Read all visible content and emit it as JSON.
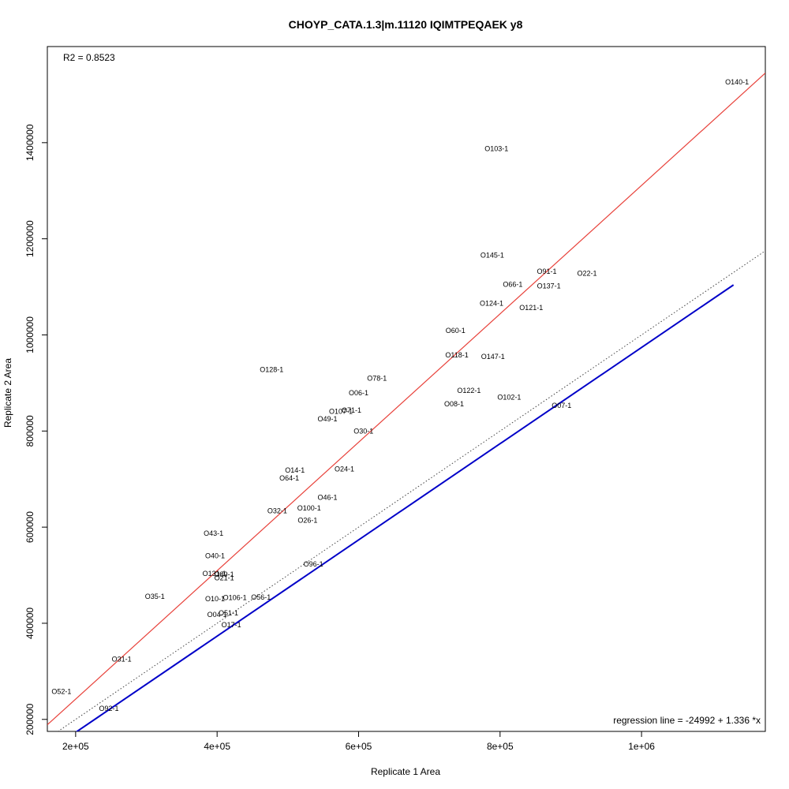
{
  "chart_data": {
    "type": "scatter",
    "title": "CHOYP_CATA.1.3|m.11120 IQIMTPEQAEK y8",
    "xlabel": "Replicate 1 Area",
    "ylabel": "Replicate 2 Area",
    "r2_text": "R2 = 0.8523",
    "regression_text": "regression line = -24992 + 1.336 *x",
    "xlim": [
      160000,
      1175000
    ],
    "ylim": [
      175000,
      1600000
    ],
    "x_ticks": [
      {
        "value": 200000,
        "label": "2e+05"
      },
      {
        "value": 400000,
        "label": "4e+05"
      },
      {
        "value": 600000,
        "label": "6e+05"
      },
      {
        "value": 800000,
        "label": "8e+05"
      },
      {
        "value": 1000000,
        "label": "1e+06"
      }
    ],
    "y_ticks": [
      {
        "value": 200000,
        "label": "200000"
      },
      {
        "value": 400000,
        "label": "400000"
      },
      {
        "value": 600000,
        "label": "600000"
      },
      {
        "value": 800000,
        "label": "800000"
      },
      {
        "value": 1000000,
        "label": "1000000"
      },
      {
        "value": 1200000,
        "label": "1200000"
      },
      {
        "value": 1400000,
        "label": "1400000"
      }
    ],
    "lines": {
      "regression": {
        "intercept": -24992,
        "slope": 1.336,
        "color": "#e8413a"
      },
      "identity": {
        "intercept": 0,
        "slope": 1,
        "color": "#444444",
        "style": "dotted"
      },
      "reference": {
        "x": [
          200000,
          1130000
        ],
        "y": [
          173000,
          1104000
        ],
        "color": "#0000c8"
      }
    },
    "points": [
      {
        "label": "O140-1",
        "x": 1135000,
        "y": 1526000
      },
      {
        "label": "O103-1",
        "x": 795000,
        "y": 1387000
      },
      {
        "label": "O145-1",
        "x": 789000,
        "y": 1166000
      },
      {
        "label": "O91-1",
        "x": 866000,
        "y": 1132000
      },
      {
        "label": "O22-1",
        "x": 923000,
        "y": 1128000
      },
      {
        "label": "O66-1",
        "x": 818000,
        "y": 1105000
      },
      {
        "label": "O137-1",
        "x": 869000,
        "y": 1102000
      },
      {
        "label": "O124-1",
        "x": 788000,
        "y": 1066000
      },
      {
        "label": "O121-1",
        "x": 844000,
        "y": 1057000
      },
      {
        "label": "O60-1",
        "x": 737000,
        "y": 1009000
      },
      {
        "label": "O118-1",
        "x": 739000,
        "y": 958000
      },
      {
        "label": "O147-1",
        "x": 790000,
        "y": 955000
      },
      {
        "label": "O128-1",
        "x": 477000,
        "y": 928000
      },
      {
        "label": "O78-1",
        "x": 626000,
        "y": 910000
      },
      {
        "label": "O122-1",
        "x": 756000,
        "y": 884000
      },
      {
        "label": "O06-1",
        "x": 600000,
        "y": 879000
      },
      {
        "label": "O102-1",
        "x": 813000,
        "y": 870000
      },
      {
        "label": "O08-1",
        "x": 735000,
        "y": 856000
      },
      {
        "label": "O07-1",
        "x": 887000,
        "y": 853000
      },
      {
        "label": "O71-1",
        "x": 590000,
        "y": 843000
      },
      {
        "label": "O107-1",
        "x": 575000,
        "y": 841000
      },
      {
        "label": "O49-1",
        "x": 556000,
        "y": 825000
      },
      {
        "label": "O30-1",
        "x": 607000,
        "y": 800000
      },
      {
        "label": "O24-1",
        "x": 580000,
        "y": 721000
      },
      {
        "label": "O14-1",
        "x": 510000,
        "y": 718000
      },
      {
        "label": "O64-1",
        "x": 502000,
        "y": 702000
      },
      {
        "label": "O46-1",
        "x": 556000,
        "y": 662000
      },
      {
        "label": "O100-1",
        "x": 530000,
        "y": 640000
      },
      {
        "label": "O32-1",
        "x": 485000,
        "y": 634000
      },
      {
        "label": "O26-1",
        "x": 528000,
        "y": 614000
      },
      {
        "label": "O43-1",
        "x": 395000,
        "y": 587000
      },
      {
        "label": "O40-1",
        "x": 397000,
        "y": 540000
      },
      {
        "label": "O96-1",
        "x": 536000,
        "y": 523000
      },
      {
        "label": "O131-1",
        "x": 396000,
        "y": 503000
      },
      {
        "label": "O89-1",
        "x": 410000,
        "y": 502000
      },
      {
        "label": "O21-1",
        "x": 410000,
        "y": 494000
      },
      {
        "label": "O35-1",
        "x": 312000,
        "y": 456000
      },
      {
        "label": "O106-1",
        "x": 425000,
        "y": 453000
      },
      {
        "label": "O56-1",
        "x": 462000,
        "y": 454000
      },
      {
        "label": "O10-1",
        "x": 397000,
        "y": 451000
      },
      {
        "label": "O51-1",
        "x": 416000,
        "y": 421000
      },
      {
        "label": "O04-1",
        "x": 400000,
        "y": 418000
      },
      {
        "label": "O17-1",
        "x": 420000,
        "y": 397000
      },
      {
        "label": "O31-1",
        "x": 265000,
        "y": 325000
      },
      {
        "label": "O52-1",
        "x": 180000,
        "y": 258000
      },
      {
        "label": "O92-1",
        "x": 247000,
        "y": 223000
      }
    ]
  }
}
